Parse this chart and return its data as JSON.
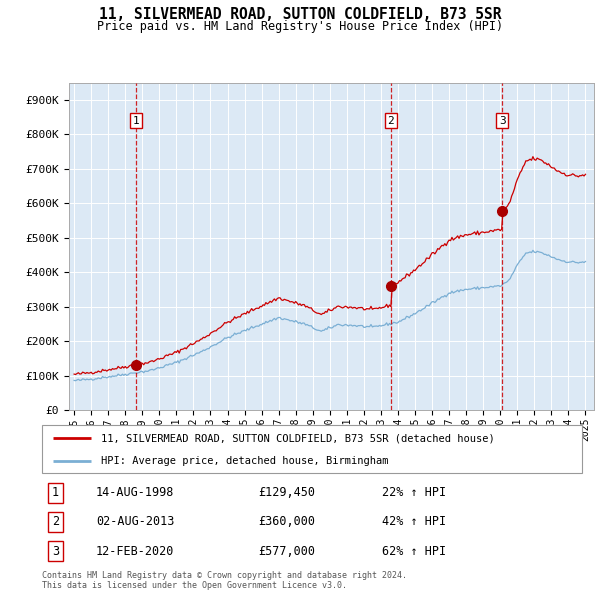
{
  "title": "11, SILVERMEAD ROAD, SUTTON COLDFIELD, B73 5SR",
  "subtitle": "Price paid vs. HM Land Registry's House Price Index (HPI)",
  "background_color": "#dce9f5",
  "red_line_color": "#cc0000",
  "blue_line_color": "#7bafd4",
  "sale_marker_color": "#aa0000",
  "vline_color": "#cc0000",
  "grid_color": "#ffffff",
  "yticks": [
    0,
    100000,
    200000,
    300000,
    400000,
    500000,
    600000,
    700000,
    800000,
    900000
  ],
  "ytick_labels": [
    "£0",
    "£100K",
    "£200K",
    "£300K",
    "£400K",
    "£500K",
    "£600K",
    "£700K",
    "£800K",
    "£900K"
  ],
  "xtick_years": [
    1995,
    1996,
    1997,
    1998,
    1999,
    2000,
    2001,
    2002,
    2003,
    2004,
    2005,
    2006,
    2007,
    2008,
    2009,
    2010,
    2011,
    2012,
    2013,
    2014,
    2015,
    2016,
    2017,
    2018,
    2019,
    2020,
    2021,
    2022,
    2023,
    2024,
    2025
  ],
  "sales": [
    {
      "label": "1",
      "date_num": 1998.62,
      "price": 129450
    },
    {
      "label": "2",
      "date_num": 2013.59,
      "price": 360000
    },
    {
      "label": "3",
      "date_num": 2020.12,
      "price": 577000
    }
  ],
  "legend_red_label": "11, SILVERMEAD ROAD, SUTTON COLDFIELD, B73 5SR (detached house)",
  "legend_blue_label": "HPI: Average price, detached house, Birmingham",
  "table_rows": [
    {
      "num": "1",
      "date": "14-AUG-1998",
      "price": "£129,450",
      "hpi": "22% ↑ HPI"
    },
    {
      "num": "2",
      "date": "02-AUG-2013",
      "price": "£360,000",
      "hpi": "42% ↑ HPI"
    },
    {
      "num": "3",
      "date": "12-FEB-2020",
      "price": "£577,000",
      "hpi": "62% ↑ HPI"
    }
  ],
  "footnote1": "Contains HM Land Registry data © Crown copyright and database right 2024.",
  "footnote2": "This data is licensed under the Open Government Licence v3.0.",
  "hpi_anchors": [
    [
      1995.0,
      85000
    ],
    [
      1996.0,
      90000
    ],
    [
      1997.5,
      100000
    ],
    [
      1999.5,
      115000
    ],
    [
      2001.0,
      138000
    ],
    [
      2002.5,
      170000
    ],
    [
      2004.0,
      210000
    ],
    [
      2005.5,
      240000
    ],
    [
      2007.0,
      268000
    ],
    [
      2008.5,
      250000
    ],
    [
      2009.5,
      228000
    ],
    [
      2010.5,
      248000
    ],
    [
      2011.5,
      245000
    ],
    [
      2012.5,
      240000
    ],
    [
      2013.0,
      245000
    ],
    [
      2014.0,
      255000
    ],
    [
      2015.0,
      280000
    ],
    [
      2016.0,
      310000
    ],
    [
      2017.0,
      340000
    ],
    [
      2018.0,
      350000
    ],
    [
      2019.0,
      355000
    ],
    [
      2020.0,
      360000
    ],
    [
      2020.5,
      375000
    ],
    [
      2021.0,
      420000
    ],
    [
      2021.5,
      455000
    ],
    [
      2022.0,
      460000
    ],
    [
      2022.5,
      455000
    ],
    [
      2023.0,
      445000
    ],
    [
      2023.5,
      435000
    ],
    [
      2024.0,
      430000
    ],
    [
      2024.5,
      428000
    ],
    [
      2025.0,
      430000
    ]
  ]
}
